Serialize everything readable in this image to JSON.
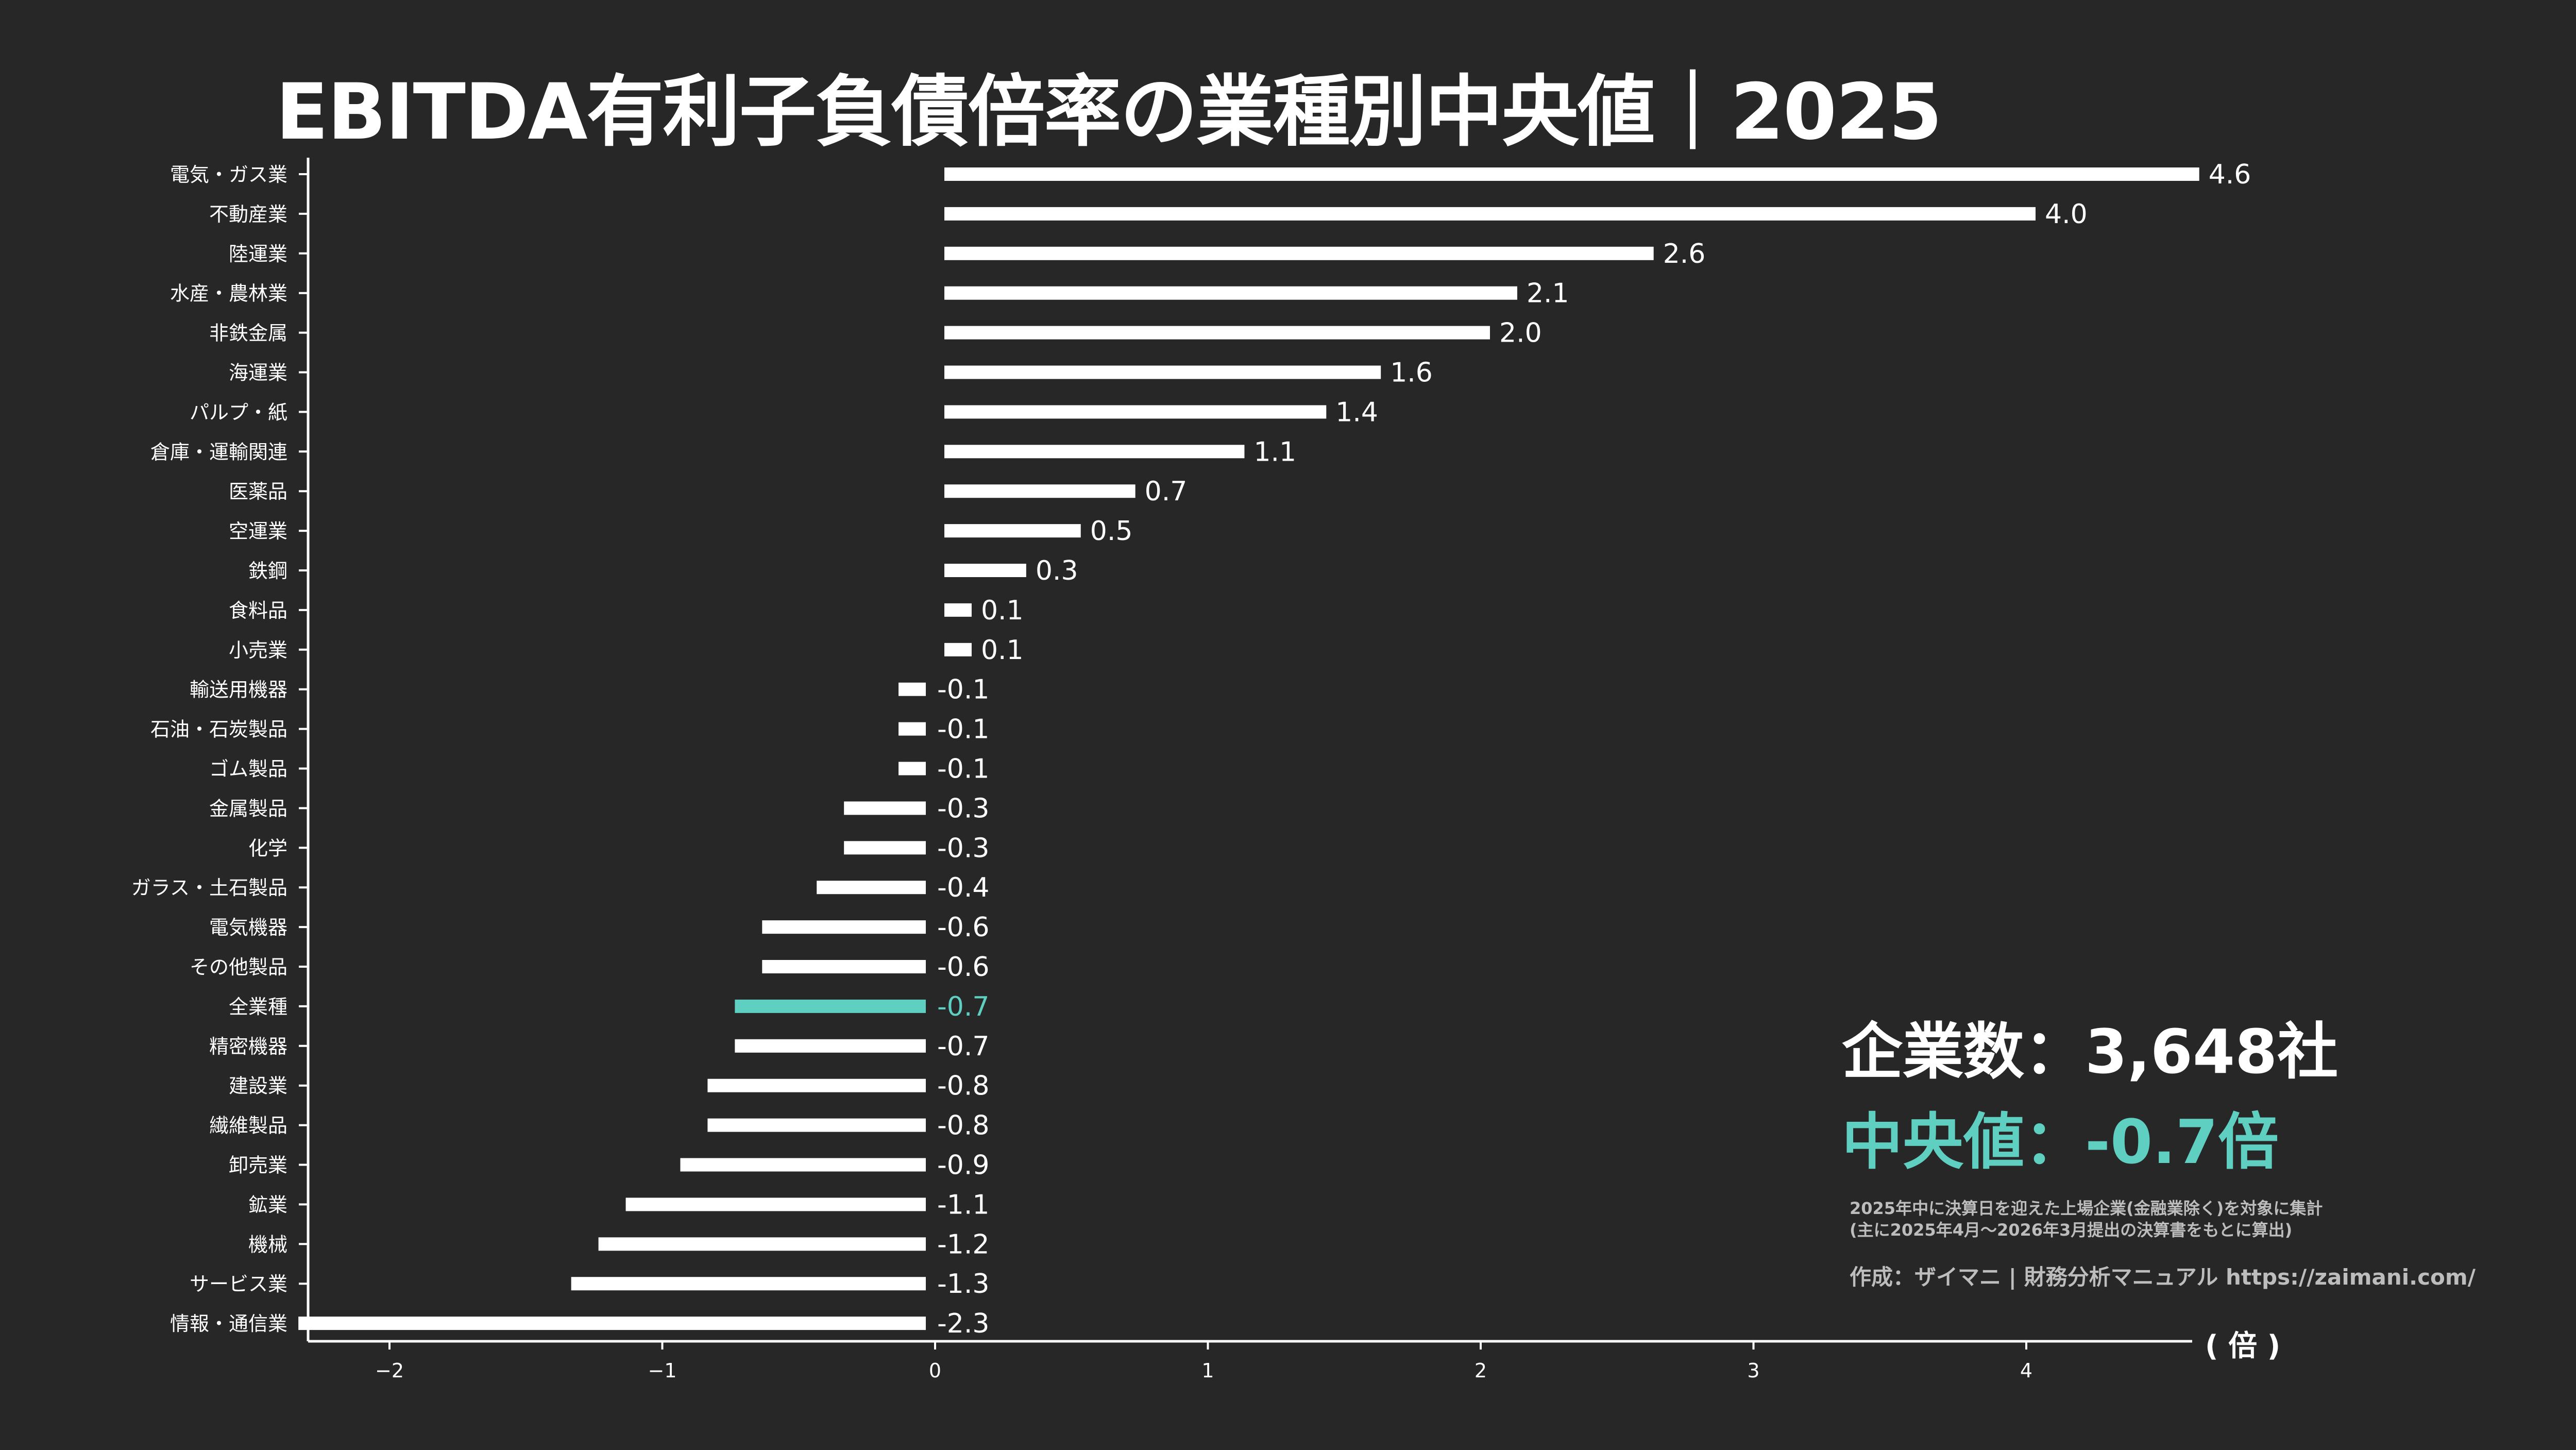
{
  "chart_data": {
    "type": "bar",
    "orientation": "horizontal",
    "title": "EBITDA有利子負債倍率の業種別中央値｜2025",
    "unit_label": "( 倍 )",
    "xlim": [
      -2.3,
      4.6
    ],
    "xticks": [
      {
        "value": -2,
        "label": "−2"
      },
      {
        "value": -1,
        "label": "−1"
      },
      {
        "value": 0,
        "label": "0"
      },
      {
        "value": 1,
        "label": "1"
      },
      {
        "value": 2,
        "label": "2"
      },
      {
        "value": 3,
        "label": "3"
      },
      {
        "value": 4,
        "label": "4"
      }
    ],
    "grid": false,
    "highlight_color": "#5ecfc0",
    "bar_color": "#ffffff",
    "bars": [
      {
        "category": "電気・ガス業",
        "value": 4.6,
        "label": "4.6"
      },
      {
        "category": "不動産業",
        "value": 4.0,
        "label": "4.0"
      },
      {
        "category": "陸運業",
        "value": 2.6,
        "label": "2.6"
      },
      {
        "category": "水産・農林業",
        "value": 2.1,
        "label": "2.1"
      },
      {
        "category": "非鉄金属",
        "value": 2.0,
        "label": "2.0"
      },
      {
        "category": "海運業",
        "value": 1.6,
        "label": "1.6"
      },
      {
        "category": "パルプ・紙",
        "value": 1.4,
        "label": "1.4"
      },
      {
        "category": "倉庫・運輸関連",
        "value": 1.1,
        "label": "1.1"
      },
      {
        "category": "医薬品",
        "value": 0.7,
        "label": "0.7"
      },
      {
        "category": "空運業",
        "value": 0.5,
        "label": "0.5"
      },
      {
        "category": "鉄鋼",
        "value": 0.3,
        "label": "0.3"
      },
      {
        "category": "食料品",
        "value": 0.1,
        "label": "0.1"
      },
      {
        "category": "小売業",
        "value": 0.1,
        "label": "0.1"
      },
      {
        "category": "輸送用機器",
        "value": -0.1,
        "label": "-0.1"
      },
      {
        "category": "石油・石炭製品",
        "value": -0.1,
        "label": "-0.1"
      },
      {
        "category": "ゴム製品",
        "value": -0.1,
        "label": "-0.1"
      },
      {
        "category": "金属製品",
        "value": -0.3,
        "label": "-0.3"
      },
      {
        "category": "化学",
        "value": -0.3,
        "label": "-0.3"
      },
      {
        "category": "ガラス・土石製品",
        "value": -0.4,
        "label": "-0.4"
      },
      {
        "category": "電気機器",
        "value": -0.6,
        "label": "-0.6"
      },
      {
        "category": "その他製品",
        "value": -0.6,
        "label": "-0.6"
      },
      {
        "category": "全業種",
        "value": -0.7,
        "label": "-0.7",
        "highlight": true
      },
      {
        "category": "精密機器",
        "value": -0.7,
        "label": "-0.7"
      },
      {
        "category": "建設業",
        "value": -0.8,
        "label": "-0.8"
      },
      {
        "category": "繊維製品",
        "value": -0.8,
        "label": "-0.8"
      },
      {
        "category": "卸売業",
        "value": -0.9,
        "label": "-0.9"
      },
      {
        "category": "鉱業",
        "value": -1.1,
        "label": "-1.1"
      },
      {
        "category": "機械",
        "value": -1.2,
        "label": "-1.2"
      },
      {
        "category": "サービス業",
        "value": -1.3,
        "label": "-1.3"
      },
      {
        "category": "情報・通信業",
        "value": -2.3,
        "label": "-2.3"
      }
    ]
  },
  "summary": {
    "company_count": "企業数：3,648社",
    "median": "中央値：-0.7倍"
  },
  "notes": {
    "line1": "2025年中に決算日を迎えた上場企業(金融業除く)を対象に集計",
    "line2": "(主に2025年4月〜2026年3月提出の決算書をもとに算出)"
  },
  "credit": "作成：ザイマニ | 財務分析マニュアル https://zaimani.com/"
}
